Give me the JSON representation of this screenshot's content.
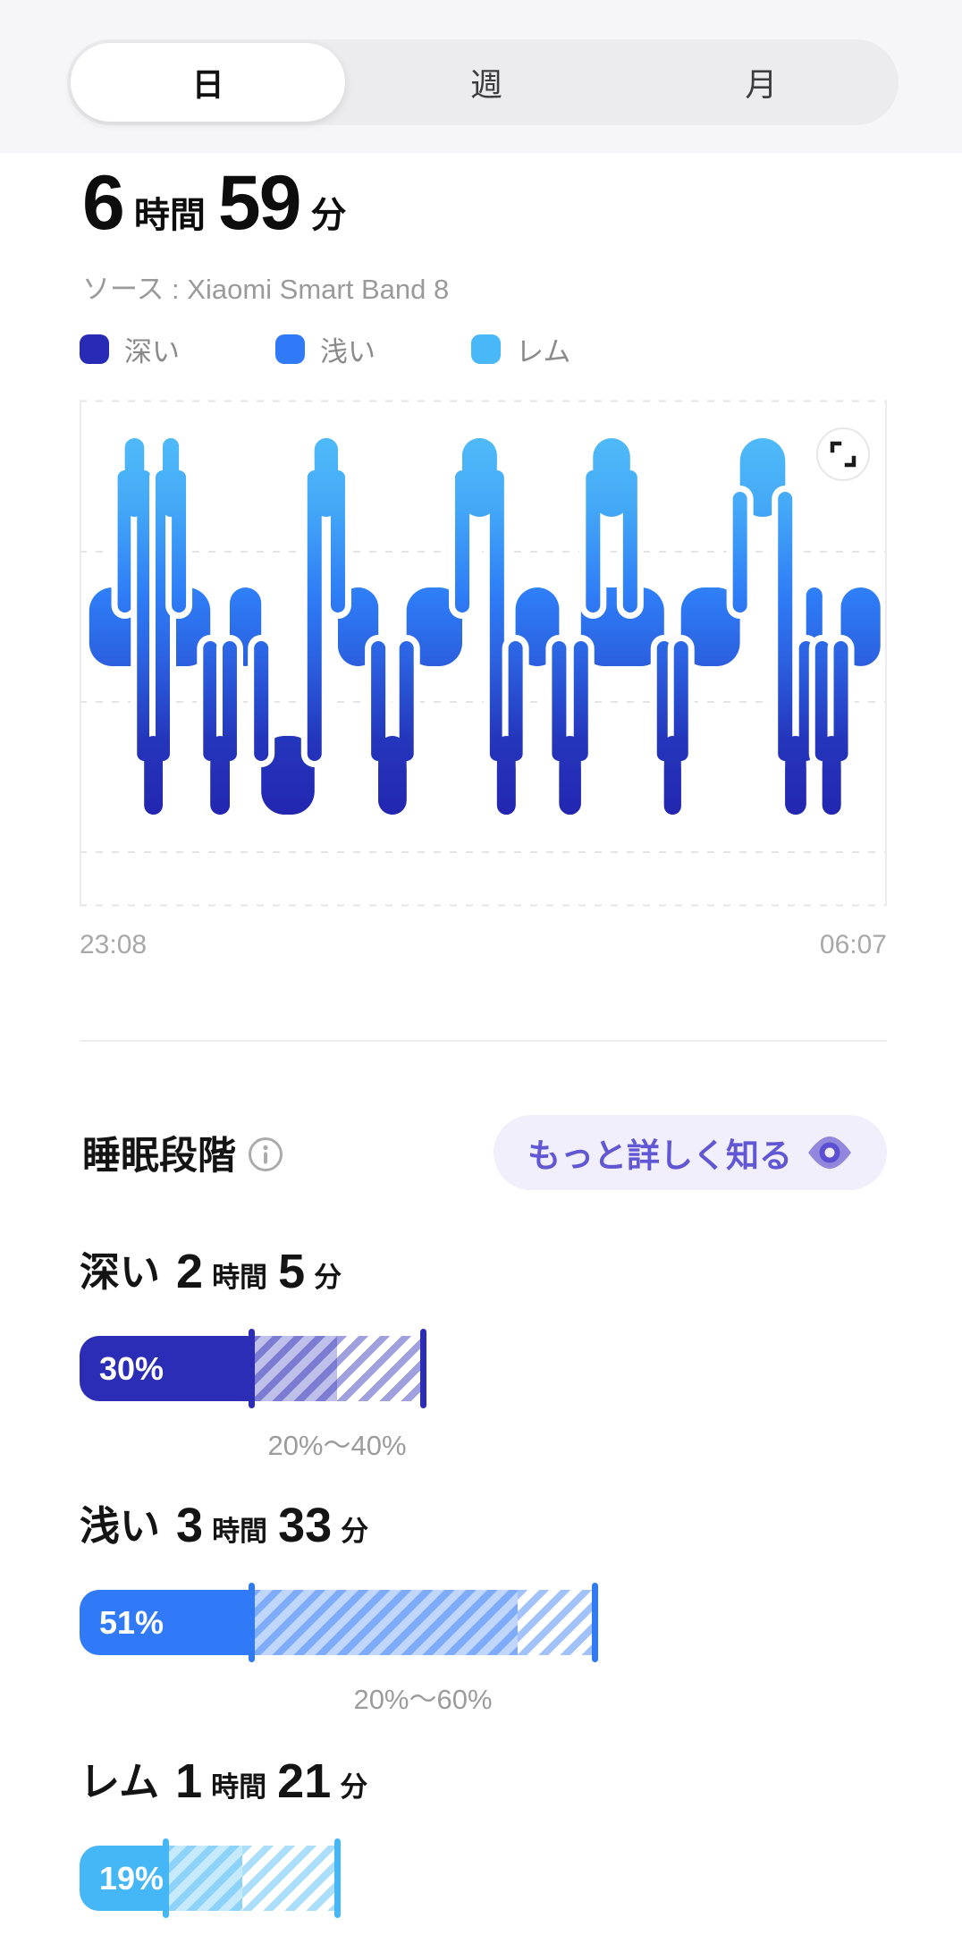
{
  "tabs": {
    "items": [
      {
        "label": "日",
        "selected": true
      },
      {
        "label": "週",
        "selected": false
      },
      {
        "label": "月",
        "selected": false
      }
    ]
  },
  "summary": {
    "hours": "6",
    "hours_unit": "時間",
    "minutes": "59",
    "minutes_unit": "分",
    "source": "ソース : Xiaomi Smart Band 8"
  },
  "legend": [
    {
      "key": "deep",
      "label": "深い",
      "color": "#282bb5"
    },
    {
      "key": "light",
      "label": "浅い",
      "color": "#3079f7"
    },
    {
      "key": "rem",
      "label": "レム",
      "color": "#49b8f8"
    }
  ],
  "chart_data": {
    "type": "hypnogram",
    "x_start_label": "23:08",
    "x_end_label": "06:07",
    "total_duration_min": 419,
    "stage_rows_top_to_bottom": [
      "レム",
      "浅い",
      "深い"
    ],
    "grid": {
      "horizontal_dashed_lines": 5,
      "legend_position": "above chart"
    },
    "segments": [
      {
        "stage": "light",
        "start": 0.012,
        "end": 0.056
      },
      {
        "stage": "rem",
        "start": 0.056,
        "end": 0.08
      },
      {
        "stage": "deep",
        "start": 0.08,
        "end": 0.103
      },
      {
        "stage": "rem",
        "start": 0.103,
        "end": 0.123
      },
      {
        "stage": "light",
        "start": 0.123,
        "end": 0.162
      },
      {
        "stage": "deep",
        "start": 0.162,
        "end": 0.186
      },
      {
        "stage": "light",
        "start": 0.186,
        "end": 0.225
      },
      {
        "stage": "deep",
        "start": 0.225,
        "end": 0.291
      },
      {
        "stage": "rem",
        "start": 0.291,
        "end": 0.32
      },
      {
        "stage": "light",
        "start": 0.32,
        "end": 0.37
      },
      {
        "stage": "deep",
        "start": 0.37,
        "end": 0.405
      },
      {
        "stage": "light",
        "start": 0.405,
        "end": 0.474
      },
      {
        "stage": "rem",
        "start": 0.474,
        "end": 0.517
      },
      {
        "stage": "deep",
        "start": 0.517,
        "end": 0.54
      },
      {
        "stage": "light",
        "start": 0.54,
        "end": 0.594
      },
      {
        "stage": "deep",
        "start": 0.594,
        "end": 0.621
      },
      {
        "stage": "light",
        "start": 0.621,
        "end": 0.636
      },
      {
        "stage": "rem",
        "start": 0.636,
        "end": 0.682
      },
      {
        "stage": "light",
        "start": 0.682,
        "end": 0.724
      },
      {
        "stage": "deep",
        "start": 0.724,
        "end": 0.745
      },
      {
        "stage": "light",
        "start": 0.745,
        "end": 0.818
      },
      {
        "stage": "rem",
        "start": 0.818,
        "end": 0.874
      },
      {
        "stage": "deep",
        "start": 0.874,
        "end": 0.9
      },
      {
        "stage": "light",
        "start": 0.9,
        "end": 0.92
      },
      {
        "stage": "deep",
        "start": 0.92,
        "end": 0.943
      },
      {
        "stage": "light",
        "start": 0.943,
        "end": 0.992
      }
    ]
  },
  "chart_footer": {
    "start_time": "23:08",
    "end_time": "06:07"
  },
  "stages_section": {
    "title": "睡眠段階",
    "more_button": {
      "label": "もっと詳しく知る",
      "bg": "#f1effb",
      "text_color": "#6156d3"
    }
  },
  "stages": [
    {
      "key": "deep",
      "name": "深い",
      "hours": "2",
      "hours_unit": "時間",
      "minutes": "5",
      "minutes_unit": "分",
      "percent": 30,
      "percent_label": "30%",
      "range_start": 20,
      "range_end": 40,
      "range_label": "20%〜40%",
      "color": "#2b2db6"
    },
    {
      "key": "light",
      "name": "浅い",
      "hours": "3",
      "hours_unit": "時間",
      "minutes": "33",
      "minutes_unit": "分",
      "percent": 51,
      "percent_label": "51%",
      "range_start": 20,
      "range_end": 60,
      "range_label": "20%〜60%",
      "color": "#3079f7"
    },
    {
      "key": "rem",
      "name": "レム",
      "hours": "1",
      "hours_unit": "時間",
      "minutes": "21",
      "minutes_unit": "分",
      "percent": 19,
      "percent_label": "19%",
      "range_start": 10,
      "range_end": 30,
      "range_label": "",
      "color": "#45b7f7"
    }
  ]
}
